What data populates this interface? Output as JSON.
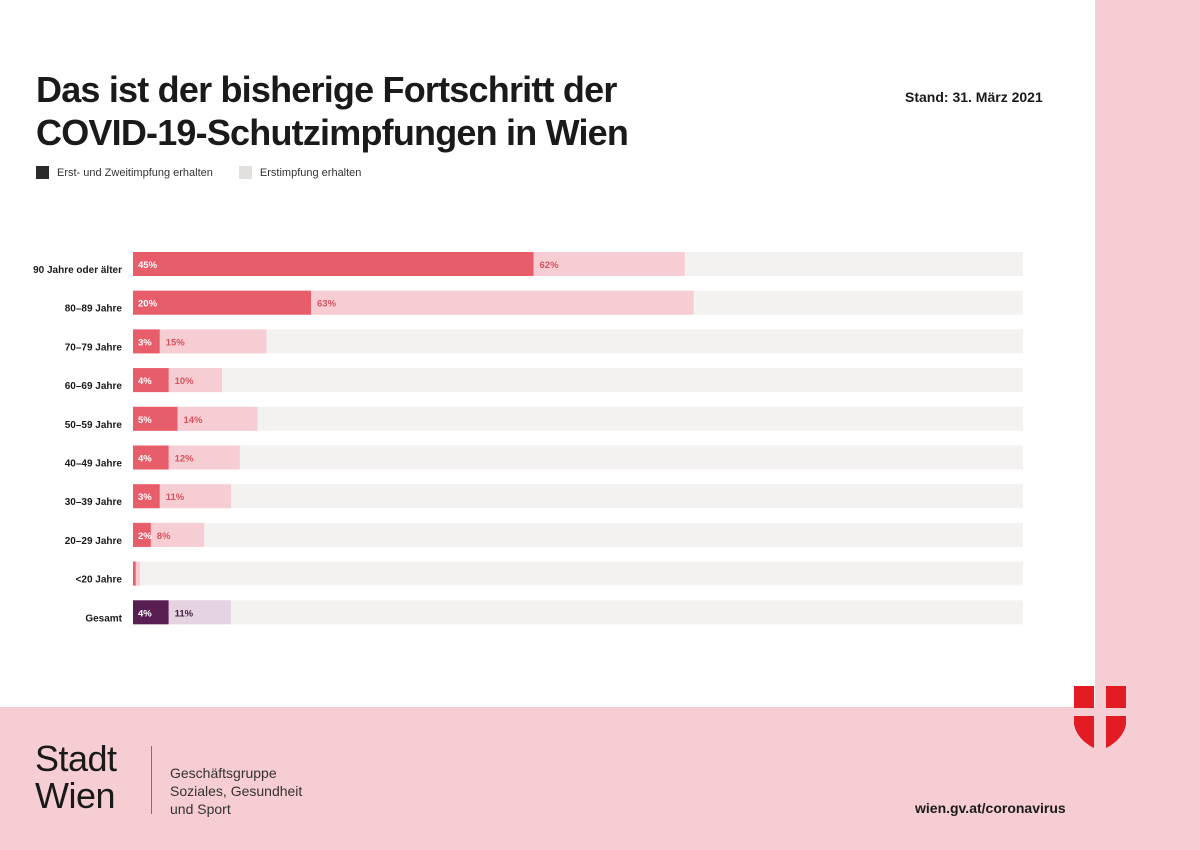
{
  "title_line1": "Das ist der bisherige Fortschritt der",
  "title_line2": "COVID-19-Schutzimpfungen in Wien",
  "stand": "Stand: 31. März 2021",
  "legend": [
    {
      "label": "Erst- und Zweitimpfung erhalten",
      "color": "#2b2b2b"
    },
    {
      "label": "Erstimpfung erhalten",
      "color": "#e1e0dc"
    }
  ],
  "colors": {
    "full": "#e85d6a",
    "first": "#f6cdd2",
    "track": "#f4f2f1",
    "full_label": "#ffffff",
    "first_label": "#d8515f",
    "total_full": "#5a1f52",
    "total_first": "#e6d3e1",
    "total_label": "#3d2342"
  },
  "chart_data": {
    "type": "bar",
    "orientation": "horizontal",
    "stacked": "overlay",
    "categories": [
      "90 Jahre oder älter",
      "80–89 Jahre",
      "70–79 Jahre",
      "60–69 Jahre",
      "50–59 Jahre",
      "40–49 Jahre",
      "30–39 Jahre",
      "20–29 Jahre",
      "<20 Jahre",
      "Gesamt"
    ],
    "series": [
      {
        "name": "Erst- und Zweitimpfung erhalten",
        "values": [
          45,
          20,
          3,
          4,
          5,
          4,
          3,
          2,
          0.3,
          4
        ]
      },
      {
        "name": "Erstimpfung erhalten",
        "values": [
          62,
          63,
          15,
          10,
          14,
          12,
          11,
          8,
          0.8,
          11
        ]
      }
    ],
    "value_labels": [
      [
        "45%",
        "20%",
        "3%",
        "4%",
        "5%",
        "4%",
        "3%",
        "2%",
        "",
        "4%"
      ],
      [
        "62%",
        "63%",
        "15%",
        "10%",
        "14%",
        "12%",
        "11%",
        "8%",
        "",
        "11%"
      ]
    ],
    "xlim": [
      0,
      100
    ],
    "legend_position": "top-left",
    "grid": false
  },
  "footer": {
    "logo_line1": "Stadt",
    "logo_line2": "Wien",
    "dept_line1": "Geschäftsgruppe",
    "dept_line2": "Soziales, Gesundheit",
    "dept_line3": "und Sport",
    "url": "wien.gv.at/coronavirus"
  }
}
